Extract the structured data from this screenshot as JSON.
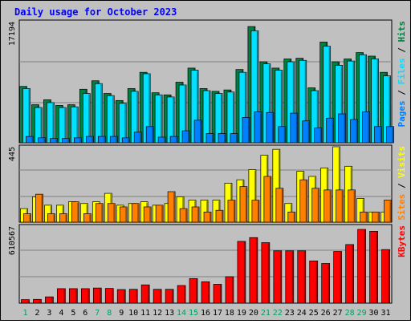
{
  "chart_data": {
    "type": "bar",
    "title": "Daily usage for October 2023",
    "categories": [
      "1",
      "2",
      "3",
      "4",
      "5",
      "6",
      "7",
      "8",
      "9",
      "10",
      "11",
      "12",
      "13",
      "14",
      "15",
      "16",
      "17",
      "18",
      "19",
      "20",
      "21",
      "22",
      "23",
      "24",
      "25",
      "26",
      "27",
      "28",
      "29",
      "30",
      "31"
    ],
    "weekend_days": [
      "1",
      "7",
      "8",
      "14",
      "15",
      "21",
      "22",
      "28",
      "29"
    ],
    "panels": [
      {
        "name": "hits-files-pages",
        "max_label": "17194",
        "ylim": [
          0,
          17194
        ],
        "legend": [
          "Pages",
          "Files",
          "Hits"
        ],
        "series": [
          {
            "name": "Hits",
            "color": "#008040",
            "values": [
              8000,
              5400,
              6100,
              5300,
              5400,
              7600,
              8800,
              7000,
              6000,
              7700,
              10000,
              7100,
              6800,
              8600,
              10600,
              7700,
              7300,
              7500,
              10400,
              16500,
              11500,
              10600,
              11900,
              12000,
              7800,
              14300,
              11500,
              11900,
              12800,
              12300,
              10000
            ]
          },
          {
            "name": "Files",
            "color": "#00e0ff",
            "values": [
              7700,
              5000,
              5700,
              5000,
              5100,
              7000,
              8400,
              6700,
              5600,
              7300,
              9800,
              6800,
              6500,
              8200,
              10300,
              7400,
              7000,
              7200,
              10000,
              15900,
              11200,
              10300,
              11500,
              11700,
              7400,
              13700,
              11000,
              11600,
              12500,
              11900,
              9500
            ]
          },
          {
            "name": "Pages",
            "color": "#0080ff",
            "values": [
              900,
              700,
              600,
              600,
              700,
              900,
              900,
              900,
              700,
              1500,
              2300,
              800,
              900,
              1700,
              3200,
              1300,
              1300,
              1300,
              3600,
              4400,
              4300,
              2300,
              4200,
              3100,
              2100,
              3500,
              4100,
              3300,
              4400,
              2300,
              2300
            ]
          }
        ]
      },
      {
        "name": "visits-sites",
        "max_label": "445",
        "ylim": [
          0,
          445
        ],
        "legend": [
          "Sites",
          "Visits"
        ],
        "series": [
          {
            "name": "Visits",
            "color": "#ffff00",
            "values": [
              80,
              150,
              100,
              100,
              120,
              110,
              120,
              170,
              100,
              110,
              120,
              100,
              110,
              150,
              130,
              130,
              130,
              230,
              250,
              310,
              395,
              430,
              110,
              300,
              270,
              320,
              445,
              330,
              140,
              60,
              60
            ]
          },
          {
            "name": "Sites",
            "color": "#ff8000",
            "values": [
              50,
              165,
              50,
              50,
              120,
              50,
              110,
              110,
              90,
              110,
              90,
              100,
              180,
              80,
              90,
              60,
              70,
              130,
              210,
              130,
              270,
              200,
              60,
              250,
              200,
              190,
              190,
              190,
              60,
              60,
              130
            ]
          }
        ]
      },
      {
        "name": "kbytes",
        "max_label": "610567",
        "ylim": [
          0,
          610567
        ],
        "legend": [
          "KBytes"
        ],
        "series": [
          {
            "name": "KBytes",
            "color": "#ff0000",
            "values": [
              28000,
              30000,
              50000,
              115000,
              115000,
              115000,
              120000,
              117000,
              108000,
              110000,
              145000,
              110000,
              110000,
              140000,
              195000,
              170000,
              150000,
              210000,
              490000,
              520000,
              480000,
              415000,
              415000,
              415000,
              335000,
              315000,
              410000,
              465000,
              585000,
              570000,
              425000
            ]
          }
        ]
      }
    ]
  }
}
